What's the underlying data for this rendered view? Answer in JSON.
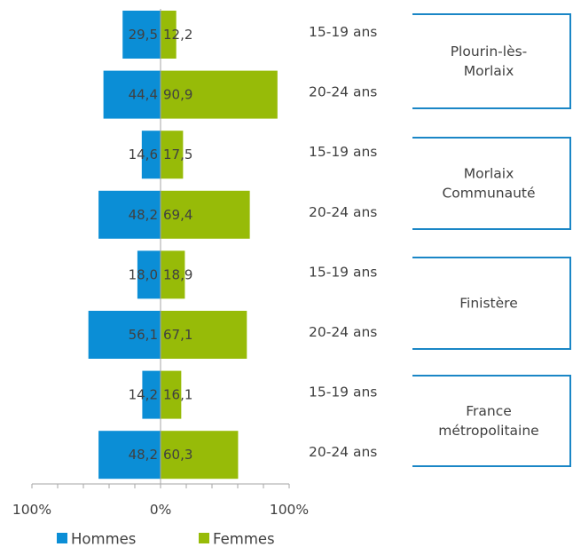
{
  "chart_data": {
    "type": "bar",
    "orientation": "horizontal",
    "stacking": "diverging",
    "categories": [
      "15-19 ans",
      "20-24 ans",
      "15-19 ans",
      "20-24 ans",
      "15-19 ans",
      "20-24 ans",
      "15-19 ans",
      "20-24 ans"
    ],
    "groups": [
      {
        "label": "Plourin-lès-Morlaix",
        "lines": [
          "Plourin-lès-",
          "Morlaix"
        ]
      },
      {
        "label": "Morlaix Communauté",
        "lines": [
          "Morlaix",
          "Communauté"
        ]
      },
      {
        "label": "Finistère",
        "lines": [
          "Finistère"
        ]
      },
      {
        "label": "France métropolitaine",
        "lines": [
          "France",
          "métropolitaine"
        ]
      }
    ],
    "series": [
      {
        "name": "Hommes",
        "color": "#0b8ed6",
        "values": [
          29.5,
          44.4,
          14.6,
          48.2,
          18.0,
          56.1,
          14.2,
          48.2
        ],
        "labels": [
          "29,5",
          "44,4",
          "14,6",
          "48,2",
          "18,0",
          "56,1",
          "14,2",
          "48,2"
        ]
      },
      {
        "name": "Femmes",
        "color": "#97bb08",
        "values": [
          12.2,
          90.9,
          17.5,
          69.4,
          18.9,
          67.1,
          16.1,
          60.3
        ],
        "labels": [
          "12,2",
          "90,9",
          "17,5",
          "69,4",
          "18,9",
          "67,1",
          "16,1",
          "60,3"
        ]
      }
    ],
    "x_ticks": [
      {
        "value": -100,
        "label": "100%"
      },
      {
        "value": 0,
        "label": "0%"
      },
      {
        "value": 100,
        "label": "100%"
      }
    ],
    "xlim": [
      -100,
      100
    ],
    "legend": {
      "position": "bottom-left",
      "entries": [
        "Hommes",
        "Femmes"
      ]
    },
    "group_box_color": "#1a86c6",
    "axis_color": "#a6a6a6",
    "text_color": "#404040"
  }
}
